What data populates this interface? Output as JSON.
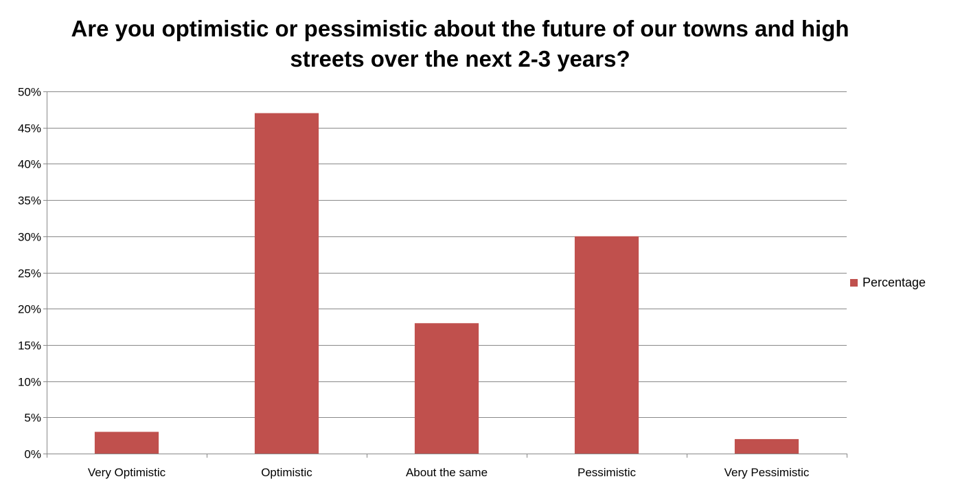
{
  "chart_data": {
    "type": "bar",
    "title": "Are you optimistic or pessimistic about the future of our towns and high streets over the next 2-3 years?",
    "categories": [
      "Very Optimistic",
      "Optimistic",
      "About the same",
      "Pessimistic",
      "Very Pessimistic"
    ],
    "series": [
      {
        "name": "Percentage",
        "values": [
          3,
          47,
          18,
          30,
          2
        ],
        "color": "#C0504D"
      }
    ],
    "ylim": [
      0,
      50
    ],
    "yticks": [
      "0%",
      "5%",
      "10%",
      "15%",
      "20%",
      "25%",
      "30%",
      "35%",
      "40%",
      "45%",
      "50%"
    ],
    "grid": true,
    "legend": "right"
  }
}
